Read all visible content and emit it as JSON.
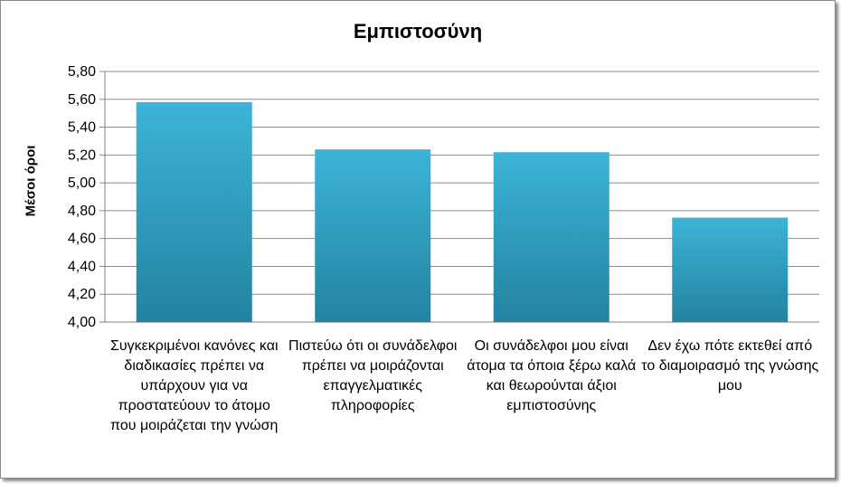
{
  "chart_data": {
    "type": "bar",
    "title": "Εμπιστοσύνη",
    "ylabel": "Μέσοι όροι",
    "xlabel": "",
    "ylim": [
      4.0,
      5.8
    ],
    "yticks": [
      "4,00",
      "4,20",
      "4,40",
      "4,60",
      "4,80",
      "5,00",
      "5,20",
      "5,40",
      "5,60",
      "5,80"
    ],
    "categories": [
      "Συγκεκριμένοι κανόνες και διαδικασίες πρέπει να υπάρχουν για να προστατεύουν το άτομο που μοιράζεται την γνώση",
      "Πιστεύω ότι οι συνάδελφοι πρέπει να μοιράζονται επαγγελματικές πληροφορίες",
      "Οι συνάδελφοι μου είναι άτομα τα όποια ξέρω καλά και θεωρούνται άξιοι εμπιστοσύνης",
      "Δεν έχω πότε εκτεθεί από το διαμοιρασμό της γνώσης μου"
    ],
    "values": [
      5.58,
      5.24,
      5.22,
      4.75
    ],
    "grid": true,
    "legend": "none",
    "bar_color_top": "#3cb4d8",
    "bar_color_bottom": "#2383a0"
  }
}
